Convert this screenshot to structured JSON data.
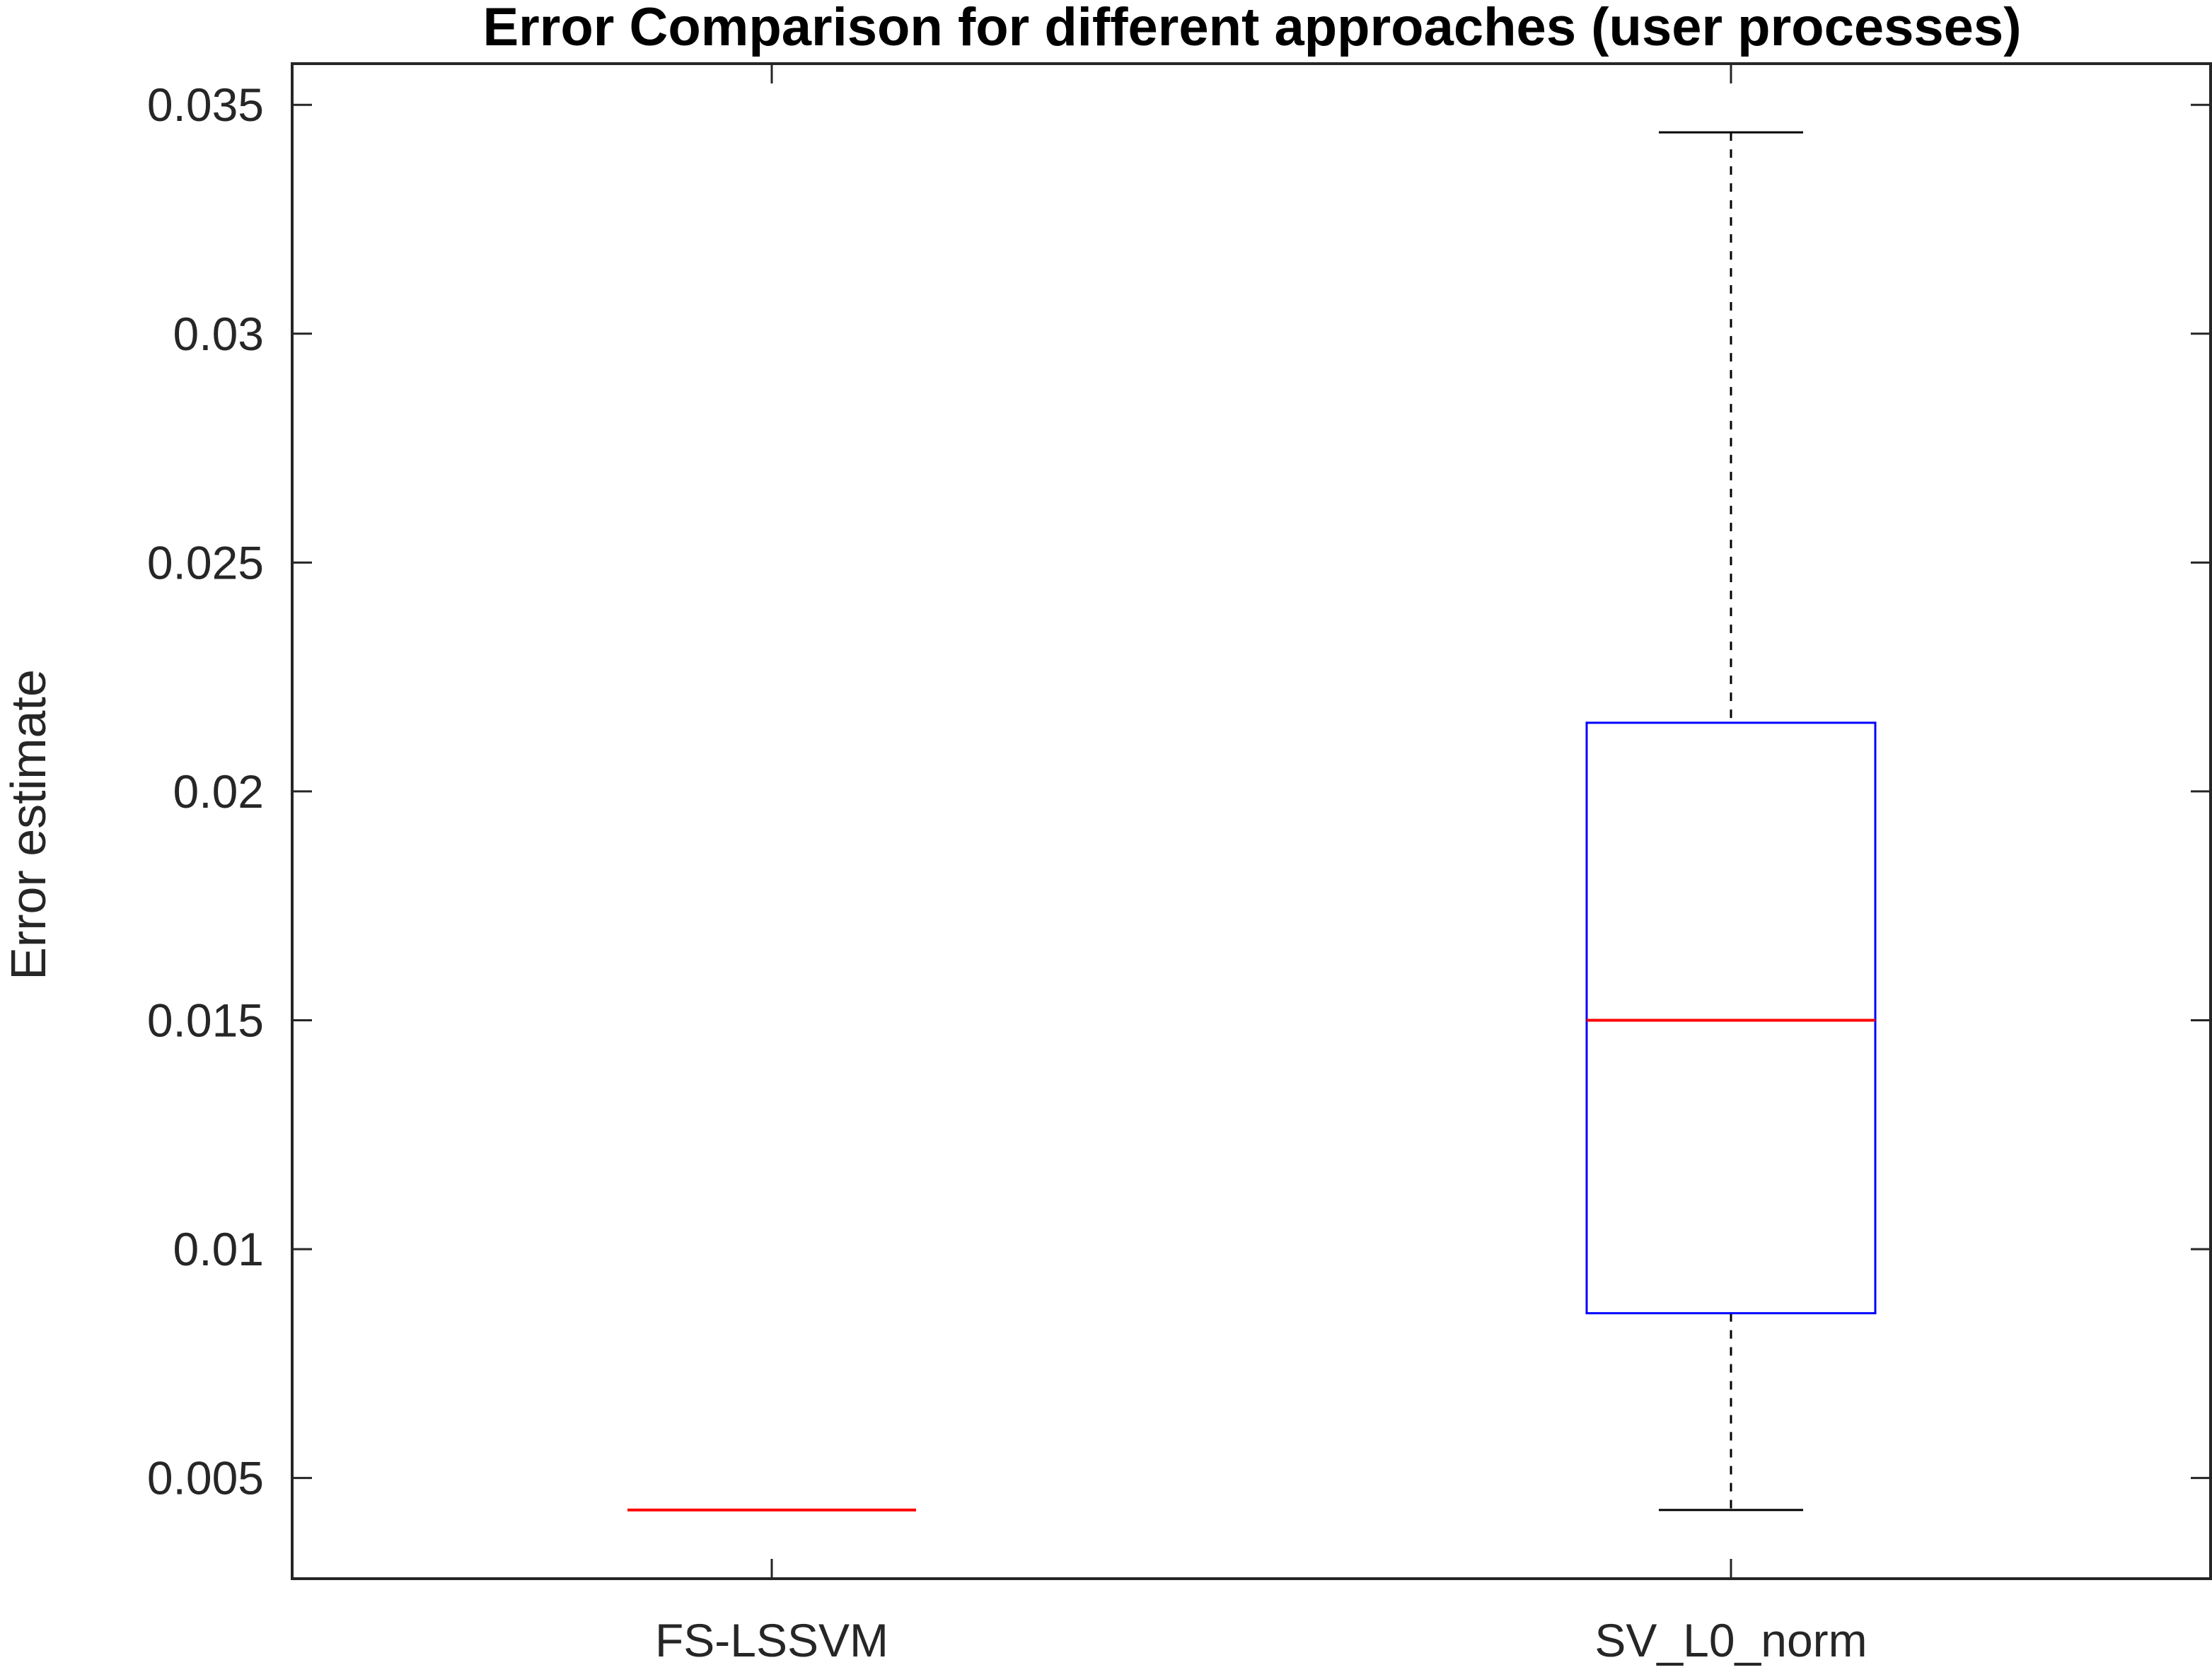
{
  "chart_data": {
    "type": "boxplot",
    "title": "Error Comparison for different approaches (user processes)",
    "xlabel": "",
    "ylabel": "Error estimate",
    "categories": [
      "FS-LSSVM",
      "SV_L0_norm"
    ],
    "boxes": [
      {
        "name": "FS-LSSVM",
        "whisker_low": 0.0043,
        "q1": 0.0043,
        "median": 0.0043,
        "q3": 0.0043,
        "whisker_high": 0.0043
      },
      {
        "name": "SV_L0_norm",
        "whisker_low": 0.0043,
        "q1": 0.0086,
        "median": 0.015,
        "q3": 0.0215,
        "whisker_high": 0.0344
      }
    ],
    "ylim": [
      0.0028,
      0.0359
    ],
    "yticks": [
      0.005,
      0.01,
      0.015,
      0.02,
      0.025,
      0.03,
      0.035
    ],
    "ytick_labels": [
      "0.005",
      "0.01",
      "0.015",
      "0.02",
      "0.025",
      "0.03",
      "0.035"
    ],
    "grid": false,
    "colors": {
      "box": "#0000ff",
      "median": "#ff0000",
      "whisker": "#000000",
      "axis": "#262626"
    }
  }
}
